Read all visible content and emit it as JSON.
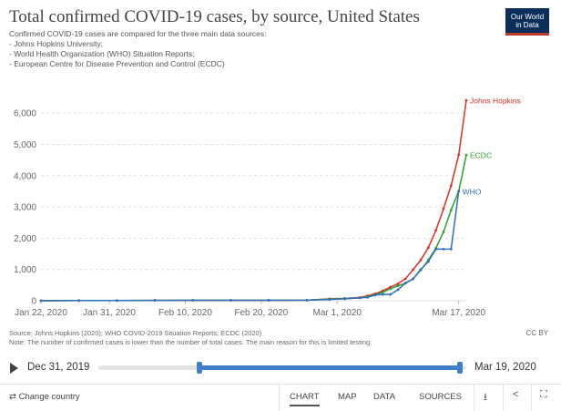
{
  "header": {
    "title": "Total confirmed COVID-19 cases, by source, United States",
    "subtitle_lines": [
      "Confirmed COVID-19 cases are compared for the three main data sources:",
      "- Johns Hopkins University;",
      "- World Health Organization (WHO) Situation Reports;",
      "- European Centre for Disease Prevention and Control (ECDC)"
    ],
    "logo_line1": "Our World",
    "logo_line2": "in Data"
  },
  "chart_data": {
    "type": "line",
    "title": "Total confirmed COVID-19 cases, by source, United States",
    "xlabel": "",
    "ylabel": "",
    "ylim": [
      0,
      6500
    ],
    "yticks": [
      0,
      1000,
      2000,
      3000,
      4000,
      5000,
      6000
    ],
    "ytick_labels": [
      "0",
      "1,000",
      "2,000",
      "3,000",
      "4,000",
      "5,000",
      "6,000"
    ],
    "xtick_labels": [
      {
        "day": 0,
        "label": "Jan 22, 2020"
      },
      {
        "day": 9,
        "label": "Jan 31, 2020"
      },
      {
        "day": 19,
        "label": "Feb 10, 2020"
      },
      {
        "day": 29,
        "label": "Feb 20, 2020"
      },
      {
        "day": 39,
        "label": "Mar 1, 2020"
      },
      {
        "day": 55,
        "label": "Mar 17, 2020"
      }
    ],
    "x_days_start": "Jan 22, 2020",
    "grid": true,
    "series": [
      {
        "name": "Johns Hopkins",
        "color": "#d73027",
        "points": [
          [
            0,
            1
          ],
          [
            5,
            5
          ],
          [
            10,
            8
          ],
          [
            15,
            13
          ],
          [
            20,
            14
          ],
          [
            25,
            15
          ],
          [
            30,
            16
          ],
          [
            35,
            18
          ],
          [
            38,
            60
          ],
          [
            40,
            76
          ],
          [
            42,
            105
          ],
          [
            43,
            158
          ],
          [
            44,
            221
          ],
          [
            45,
            319
          ],
          [
            46,
            435
          ],
          [
            47,
            541
          ],
          [
            48,
            704
          ],
          [
            49,
            994
          ],
          [
            50,
            1301
          ],
          [
            51,
            1697
          ],
          [
            52,
            2247
          ],
          [
            53,
            2943
          ],
          [
            54,
            3680
          ],
          [
            55,
            4663
          ],
          [
            56,
            6411
          ]
        ]
      },
      {
        "name": "ECDC",
        "color": "#2ca02c",
        "points": [
          [
            0,
            1
          ],
          [
            5,
            5
          ],
          [
            10,
            8
          ],
          [
            15,
            13
          ],
          [
            20,
            14
          ],
          [
            25,
            15
          ],
          [
            30,
            16
          ],
          [
            35,
            18
          ],
          [
            38,
            50
          ],
          [
            40,
            70
          ],
          [
            42,
            90
          ],
          [
            43,
            125
          ],
          [
            44,
            190
          ],
          [
            45,
            270
          ],
          [
            46,
            380
          ],
          [
            47,
            480
          ],
          [
            48,
            560
          ],
          [
            49,
            700
          ],
          [
            50,
            980
          ],
          [
            51,
            1300
          ],
          [
            52,
            1680
          ],
          [
            53,
            2200
          ],
          [
            54,
            2900
          ],
          [
            55,
            3500
          ],
          [
            56,
            4661
          ]
        ]
      },
      {
        "name": "WHO",
        "color": "#2f6eba",
        "points": [
          [
            0,
            1
          ],
          [
            5,
            5
          ],
          [
            10,
            8
          ],
          [
            15,
            13
          ],
          [
            20,
            14
          ],
          [
            25,
            15
          ],
          [
            30,
            16
          ],
          [
            35,
            18
          ],
          [
            38,
            40
          ],
          [
            40,
            60
          ],
          [
            42,
            90
          ],
          [
            43,
            110
          ],
          [
            44,
            180
          ],
          [
            45,
            200
          ],
          [
            46,
            200
          ],
          [
            47,
            350
          ],
          [
            48,
            570
          ],
          [
            49,
            700
          ],
          [
            50,
            1000
          ],
          [
            51,
            1250
          ],
          [
            52,
            1650
          ],
          [
            53,
            1650
          ],
          [
            54,
            1650
          ],
          [
            55,
            3500
          ]
        ]
      }
    ]
  },
  "footer": {
    "source": "Source: Johns Hopkins (2020); WHO COVID-2019 Situation Reports; ECDC (2020)",
    "note": "Note: The number of confirmed cases is lower than the number of total cases. The main reason for this is limited testing.",
    "license": "CC BY"
  },
  "timeline": {
    "start_label": "Dec 31, 2019",
    "end_label": "Mar 19, 2020"
  },
  "bottombar": {
    "change_country": "Change country",
    "tabs": [
      "CHART",
      "MAP",
      "DATA",
      "SOURCES"
    ],
    "active_tab": "CHART"
  }
}
